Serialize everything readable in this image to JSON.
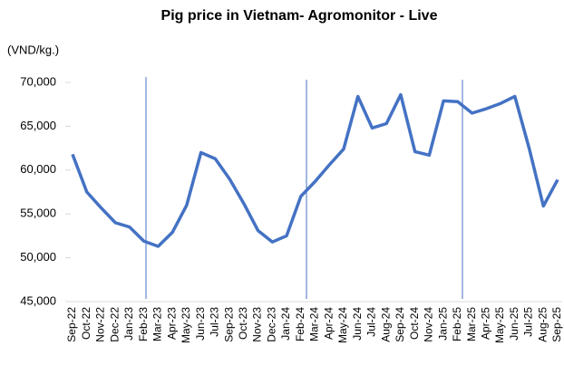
{
  "chart_data": {
    "type": "line",
    "title": "Pig price in Vietnam- Agromonitor - Live",
    "y_label": "(VND/kg.)",
    "categories": [
      "Sep-22",
      "Oct-22",
      "Nov-22",
      "Dec-22",
      "Jan-23",
      "Feb-23",
      "Mar-23",
      "Apr-23",
      "May-23",
      "Jun-23",
      "Jul-23",
      "Sep-23",
      "Oct-23",
      "Nov-23",
      "Dec-23",
      "Jan-24",
      "Feb-24",
      "Mar-24",
      "Apr-24",
      "May-24",
      "Jun-24",
      "Jul-24",
      "Aug-24",
      "Sep-24",
      "Oct-24",
      "Nov-24",
      "Jan-25",
      "Feb-25",
      "Mar-25",
      "Apr-25",
      "May-25",
      "Jun-25",
      "Jul-25",
      "Aug-25",
      "Sep-25"
    ],
    "series": [
      {
        "color": "#4472c4",
        "values": [
          61800,
          57500,
          55700,
          54000,
          53500,
          51900,
          51300,
          52900,
          56000,
          62000,
          61300,
          59000,
          56200,
          53100,
          51800,
          52500,
          57000,
          58700,
          60600,
          62400,
          68400,
          64800,
          65300,
          68600,
          62100,
          61700,
          67900,
          67800,
          66500,
          67000,
          67600,
          68400,
          62500,
          55900,
          58900
        ]
      }
    ],
    "ylim": [
      45000,
      70000
    ],
    "yticks": [
      {
        "value": 45000,
        "label": "45,000"
      },
      {
        "value": 50000,
        "label": "50,000"
      },
      {
        "value": 55000,
        "label": "55,000"
      },
      {
        "value": 60000,
        "label": "60,000"
      },
      {
        "value": 65000,
        "label": "65,000"
      },
      {
        "value": 70000,
        "label": "70,000"
      }
    ]
  }
}
